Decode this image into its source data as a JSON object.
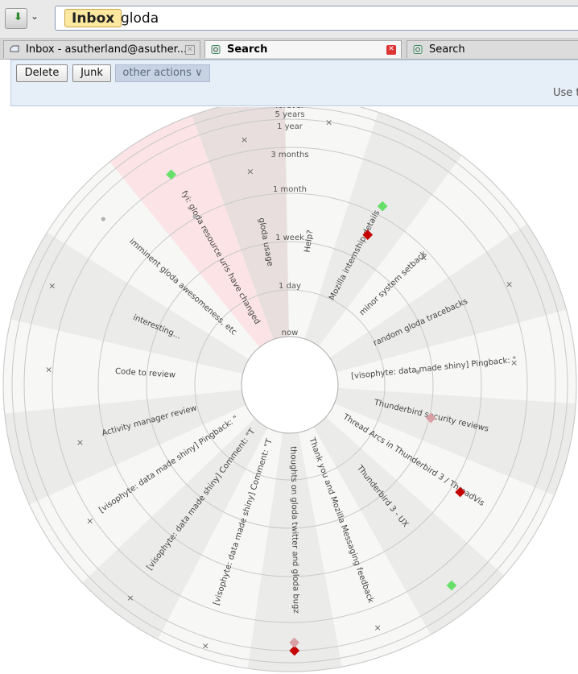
{
  "toolbar": {
    "get_mail_icon": "download-icon",
    "dropdown_icon": "chevron-down-icon",
    "search": {
      "scope": "Inbox",
      "query": "gloda"
    }
  },
  "tabs": [
    {
      "label": "Inbox - asutherland@asuther...",
      "icon": "mail-folder-icon",
      "close_icon": "close-icon"
    },
    {
      "label": "Search",
      "icon": "search-tab-icon",
      "close_icon": "close-icon"
    },
    {
      "label": "Search",
      "icon": "search-tab-icon"
    }
  ],
  "actions": {
    "delete": "Delete",
    "junk": "Junk",
    "other": "other actions ∨",
    "hint": "Use t"
  },
  "viz": {
    "ring_labels": [
      "now",
      "1 day",
      "1 week",
      "1 month",
      "3 months",
      "1 year",
      "5 years",
      "forever"
    ],
    "conversations": [
      "Help?",
      "Mozilla internship details",
      "minor system setback",
      "random gloda tracebacks",
      "[visophyte: data made shiny] Pingback: \"",
      "Thunderbird security reviews",
      "Thread Arcs in Thunderbird 3 / ThreadVis",
      "Thunderbird 3 - UX",
      "Thank you and Mozilla Messaging feedback",
      "thoughts on gloda twitter and gloda bugz",
      "[visophyte: data made shiny] Comment: \"T",
      "[visophyte: data made shiny] Comment: \"T",
      "[visophyte: data made shiny] Pingback: \"",
      "Activity manager review",
      "Code to review",
      "interesting...",
      "imminent gloda awesomeness, etc",
      "fyi: gloda resource uris have changed",
      "gloda usage"
    ],
    "colors": {
      "selected": "#fbe3e6",
      "selected_dim": "#e8dede",
      "shade": "#ebebe9",
      "light": "#f7f7f6",
      "green": "#66e06a",
      "red": "#c40000",
      "pink": "#d9a0a6",
      "gray": "#b0b0b0"
    }
  }
}
